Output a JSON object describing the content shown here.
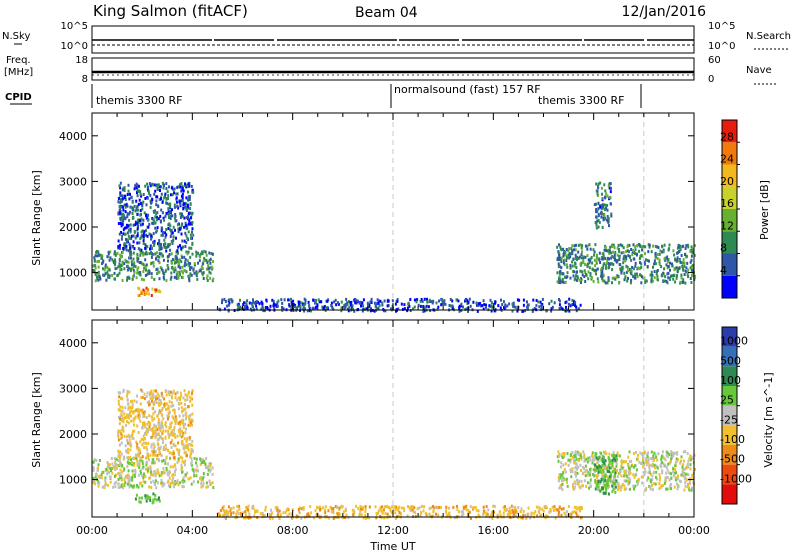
{
  "header": {
    "station": "King Salmon (fitACF)",
    "beam": "Beam 04",
    "date": "12/Jan/2016"
  },
  "status_panels": {
    "nsky_label": "N.Sky",
    "nsearch_label": "N.Search",
    "freq_label_1": "Freq.",
    "freq_label_2": "[MHz]",
    "nave_label": "Nave",
    "cpid_label": "CPID",
    "noise_ticks_left": [
      "10^5",
      "10^0"
    ],
    "noise_ticks_right": [
      "10^5",
      "10^0"
    ],
    "freq_ticks_left": [
      "18",
      "8"
    ],
    "nave_ticks_right": [
      "60",
      "0"
    ],
    "modes": [
      {
        "label": "themis 3300 RF"
      },
      {
        "label": "normalsound (fast) 157 RF"
      },
      {
        "label": "themis 3300 RF"
      }
    ]
  },
  "chart_data": [
    {
      "type": "heatmap",
      "name": "power-panel",
      "ylabel": "Slant Range [km]",
      "xlabel": "",
      "xlim": [
        0,
        24
      ],
      "ylim": [
        180,
        4500
      ],
      "y_ticks": [
        "1000",
        "2000",
        "3000",
        "4000"
      ],
      "colorbar": {
        "label": "Power [dB]",
        "range": [
          0,
          32
        ],
        "ticks": [
          "4",
          "8",
          "12",
          "16",
          "20",
          "24",
          "28"
        ],
        "colors": [
          "#0000ff",
          "#2f57a8",
          "#2e8a52",
          "#66b032",
          "#c8d22d",
          "#f2b81e",
          "#f07a0c",
          "#e81c0c"
        ]
      },
      "echo_regions": [
        {
          "t_start": 0.0,
          "t_end": 4.8,
          "r_min": 850,
          "r_max": 1500,
          "level": 10
        },
        {
          "t_start": 1.0,
          "t_end": 4.0,
          "r_min": 1500,
          "r_max": 3000,
          "level": 6
        },
        {
          "t_start": 1.7,
          "t_end": 2.7,
          "r_min": 520,
          "r_max": 720,
          "level": 24
        },
        {
          "t_start": 5.0,
          "t_end": 19.5,
          "r_min": 180,
          "r_max": 450,
          "level": 5
        },
        {
          "t_start": 18.5,
          "t_end": 24.0,
          "r_min": 800,
          "r_max": 1650,
          "level": 9
        },
        {
          "t_start": 20.0,
          "t_end": 20.7,
          "r_min": 2000,
          "r_max": 3000,
          "level": 8
        }
      ]
    },
    {
      "type": "heatmap",
      "name": "velocity-panel",
      "ylabel": "Slant Range [km]",
      "xlabel": "Time UT",
      "xlim": [
        0,
        24
      ],
      "ylim": [
        180,
        4500
      ],
      "x_ticks": [
        "00:00",
        "04:00",
        "08:00",
        "12:00",
        "16:00",
        "20:00",
        "00:00"
      ],
      "y_ticks": [
        "1000",
        "2000",
        "3000",
        "4000"
      ],
      "colorbar": {
        "label": "Velocity [m s^-1]",
        "ticks": [
          "1000",
          "500",
          "100",
          "25",
          "-25",
          "-100",
          "-500",
          "-1000"
        ],
        "colors": [
          "#2a3da8",
          "#356fb8",
          "#2e8a52",
          "#66c838",
          "#c0c0c0",
          "#f0c030",
          "#f08a18",
          "#ee4a10",
          "#e20c0c"
        ]
      },
      "echo_regions": [
        {
          "t_start": 0.0,
          "t_end": 4.8,
          "r_min": 850,
          "r_max": 1500,
          "velocity": 0
        },
        {
          "t_start": 1.0,
          "t_end": 4.0,
          "r_min": 1500,
          "r_max": 3000,
          "velocity": -50
        },
        {
          "t_start": 1.7,
          "t_end": 2.7,
          "r_min": 520,
          "r_max": 720,
          "velocity": 80
        },
        {
          "t_start": 5.0,
          "t_end": 19.5,
          "r_min": 180,
          "r_max": 450,
          "velocity": -70
        },
        {
          "t_start": 18.5,
          "t_end": 24.0,
          "r_min": 800,
          "r_max": 1650,
          "velocity": 0
        },
        {
          "t_start": 20.0,
          "t_end": 20.9,
          "r_min": 700,
          "r_max": 1600,
          "velocity": 90
        }
      ]
    }
  ],
  "mode_change_times": [
    12.0,
    22.0
  ],
  "colors": {
    "axis": "#000000",
    "dashed": "#c8c8c8"
  }
}
